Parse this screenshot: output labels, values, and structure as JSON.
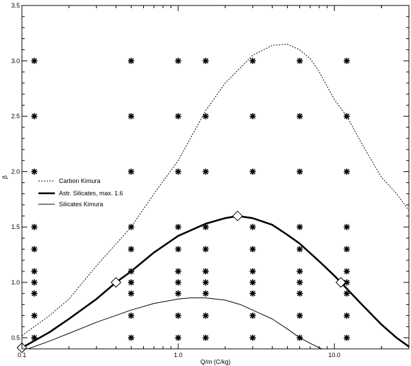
{
  "chart_data": {
    "type": "scatter",
    "xlabel": "Q/m (C/kg)",
    "ylabel": "β",
    "x_scale": "log",
    "xlim": [
      0.1,
      30
    ],
    "ylim": [
      0.4,
      3.5
    ],
    "x_ticks": [
      {
        "value": 0.1,
        "label": "0.1"
      },
      {
        "value": 1.0,
        "label": "1.0"
      },
      {
        "value": 10.0,
        "label": "10.0"
      }
    ],
    "y_ticks": [
      {
        "value": 0.5,
        "label": "0.5"
      },
      {
        "value": 1.0,
        "label": "1.0"
      },
      {
        "value": 1.5,
        "label": "1.5"
      },
      {
        "value": 2.0,
        "label": "2.0"
      },
      {
        "value": 2.5,
        "label": "2.5"
      },
      {
        "value": 3.0,
        "label": "3.0"
      },
      {
        "value": 3.5,
        "label": "3.5"
      }
    ],
    "legend_position": "left",
    "series": [
      {
        "name": "Carbon Kimura",
        "style": "dotted",
        "color": "#000000",
        "points": [
          [
            0.1,
            0.52
          ],
          [
            0.15,
            0.7
          ],
          [
            0.2,
            0.85
          ],
          [
            0.3,
            1.15
          ],
          [
            0.5,
            1.5
          ],
          [
            0.7,
            1.8
          ],
          [
            1.0,
            2.1
          ],
          [
            1.5,
            2.55
          ],
          [
            2.0,
            2.8
          ],
          [
            3.0,
            3.05
          ],
          [
            4.0,
            3.14
          ],
          [
            5.0,
            3.15
          ],
          [
            6.0,
            3.1
          ],
          [
            7.0,
            3.02
          ],
          [
            8.0,
            2.9
          ],
          [
            10.0,
            2.65
          ],
          [
            12.0,
            2.5
          ],
          [
            15.0,
            2.25
          ],
          [
            20.0,
            1.95
          ],
          [
            25.0,
            1.8
          ],
          [
            30.0,
            1.65
          ]
        ]
      },
      {
        "name": "Astr. Silicates, max. 1.6",
        "style": "thick",
        "color": "#000000",
        "points": [
          [
            0.1,
            0.41
          ],
          [
            0.15,
            0.55
          ],
          [
            0.2,
            0.67
          ],
          [
            0.3,
            0.85
          ],
          [
            0.4,
            1.0
          ],
          [
            0.5,
            1.1
          ],
          [
            0.7,
            1.27
          ],
          [
            1.0,
            1.42
          ],
          [
            1.5,
            1.53
          ],
          [
            2.0,
            1.58
          ],
          [
            2.4,
            1.6
          ],
          [
            3.0,
            1.58
          ],
          [
            4.0,
            1.52
          ],
          [
            5.0,
            1.43
          ],
          [
            6.0,
            1.35
          ],
          [
            8.0,
            1.19
          ],
          [
            10.0,
            1.06
          ],
          [
            11.0,
            1.0
          ],
          [
            15.0,
            0.8
          ],
          [
            20.0,
            0.62
          ],
          [
            25.0,
            0.5
          ],
          [
            30.0,
            0.42
          ]
        ]
      },
      {
        "name": "Silicates Kimura",
        "style": "thin",
        "color": "#000000",
        "points": [
          [
            0.1,
            0.38
          ],
          [
            0.15,
            0.47
          ],
          [
            0.2,
            0.54
          ],
          [
            0.3,
            0.64
          ],
          [
            0.5,
            0.75
          ],
          [
            0.7,
            0.81
          ],
          [
            1.0,
            0.85
          ],
          [
            1.2,
            0.86
          ],
          [
            1.5,
            0.86
          ],
          [
            2.0,
            0.84
          ],
          [
            2.5,
            0.8
          ],
          [
            3.0,
            0.75
          ],
          [
            4.0,
            0.67
          ],
          [
            5.0,
            0.58
          ],
          [
            6.0,
            0.5
          ],
          [
            7.0,
            0.45
          ],
          [
            8.0,
            0.41
          ],
          [
            9.0,
            0.38
          ]
        ]
      }
    ],
    "diamond_markers": [
      [
        0.1,
        0.41
      ],
      [
        0.4,
        1.0
      ],
      [
        2.4,
        1.6
      ],
      [
        11.0,
        1.0
      ]
    ],
    "grid_points": {
      "marker": "asterisk",
      "columns": [
        {
          "x": 0.12,
          "ys": [
            0.5,
            0.7,
            0.9,
            1.0,
            1.1,
            1.3,
            1.5,
            2.0,
            2.5,
            3.0
          ]
        },
        {
          "x": 0.5,
          "ys": [
            0.5,
            0.7,
            0.9,
            1.0,
            1.1,
            1.3,
            1.5,
            2.0,
            2.5,
            3.0
          ]
        },
        {
          "x": 1.0,
          "ys": [
            0.5,
            0.7,
            0.9,
            1.0,
            1.1,
            1.3,
            1.5,
            2.0,
            2.5,
            3.0
          ]
        },
        {
          "x": 1.5,
          "ys": [
            0.5,
            0.7,
            0.9,
            1.0,
            1.1,
            1.3,
            1.5,
            2.0,
            2.5,
            3.0
          ]
        },
        {
          "x": 3.0,
          "ys": [
            0.5,
            0.7,
            0.9,
            1.0,
            1.1,
            1.3,
            1.5,
            2.0,
            2.5,
            3.0
          ]
        },
        {
          "x": 6.0,
          "ys": [
            0.5,
            0.7,
            0.9,
            1.0,
            1.1,
            1.3,
            1.5,
            2.0,
            2.5,
            3.0
          ]
        },
        {
          "x": 12.0,
          "ys": [
            0.5,
            0.7,
            0.9,
            1.0,
            1.1,
            1.3,
            1.5,
            2.0,
            2.5,
            3.0
          ]
        }
      ]
    }
  }
}
